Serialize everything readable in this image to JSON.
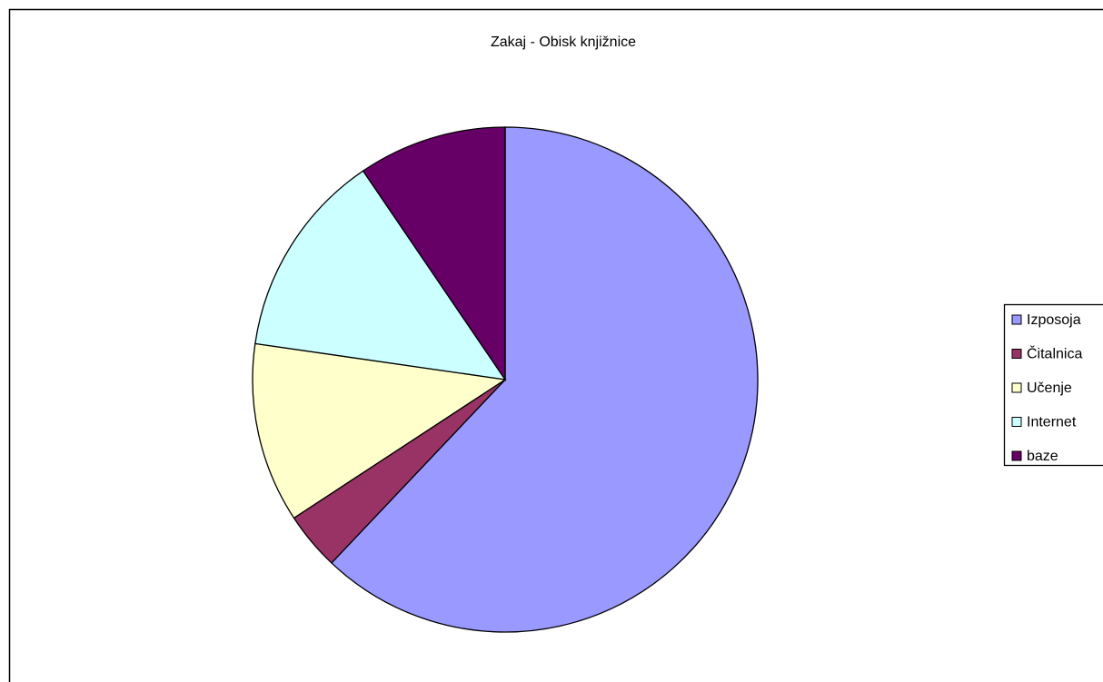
{
  "chart_data": {
    "type": "pie",
    "title": "Zakaj - Obisk knjižnice",
    "categories": [
      "Izposoja",
      "Čitalnica",
      "Učenje",
      "Internet",
      "baze"
    ],
    "values": [
      62,
      3.7,
      11.5,
      13.2,
      9.5
    ],
    "colors": [
      "#9999ff",
      "#993366",
      "#ffffcc",
      "#ccffff",
      "#660066"
    ],
    "legend": "right"
  }
}
